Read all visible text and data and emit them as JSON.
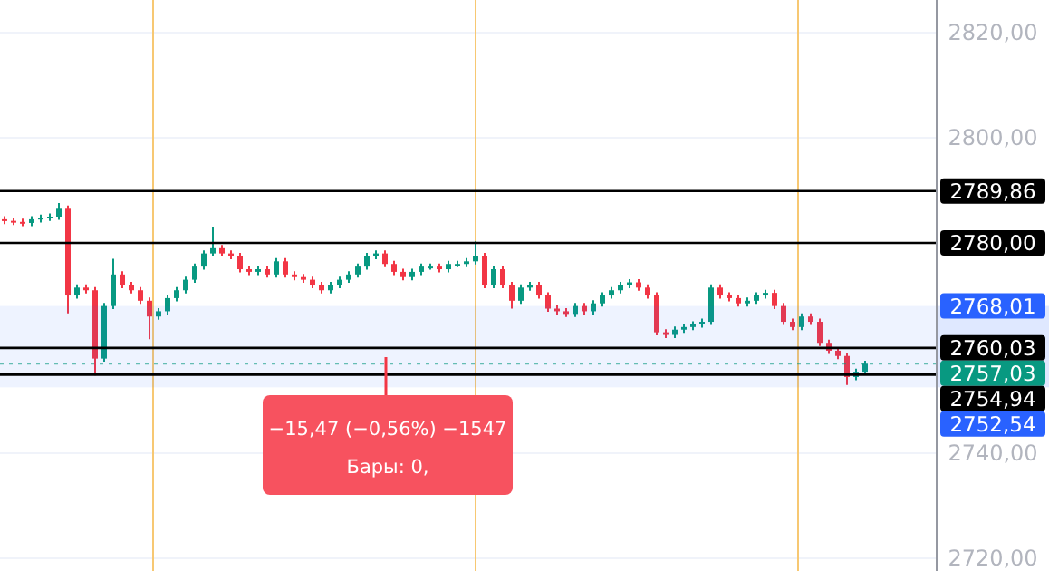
{
  "chart_data": {
    "type": "candlestick",
    "categories": [
      null,
      null,
      null,
      null,
      null,
      null,
      null,
      null,
      null,
      null,
      null,
      null,
      null,
      null,
      null,
      null,
      null,
      null,
      null,
      null,
      null,
      null,
      null,
      null,
      null,
      null,
      null,
      null,
      null,
      null,
      null,
      null,
      null,
      null,
      null,
      null,
      null,
      null,
      null,
      null,
      null,
      null,
      null,
      null,
      null,
      null,
      null,
      null,
      null,
      null,
      null,
      null,
      null,
      null,
      null,
      null,
      null,
      null,
      null,
      null,
      null,
      null,
      null,
      null,
      null,
      null,
      null,
      null,
      null,
      null,
      null,
      null,
      null,
      null,
      null,
      null,
      null,
      null,
      null,
      null,
      null,
      null,
      null,
      null,
      null,
      null,
      null,
      null,
      null,
      null,
      null,
      null,
      null,
      null,
      null,
      null
    ],
    "ohlc": [
      [
        2784.5,
        2785.1,
        2783.6,
        2784.2
      ],
      [
        2784.2,
        2784.8,
        2783.4,
        2784.0
      ],
      [
        2784.0,
        2784.6,
        2783.2,
        2783.8
      ],
      [
        2783.8,
        2785.1,
        2783.2,
        2784.5
      ],
      [
        2784.5,
        2785.4,
        2783.9,
        2784.8
      ],
      [
        2784.8,
        2785.6,
        2784.2,
        2785.0
      ],
      [
        2785.0,
        2787.6,
        2784.4,
        2786.5
      ],
      [
        2786.5,
        2787.1,
        2766.6,
        2770.0
      ],
      [
        2770.0,
        2772.1,
        2769.4,
        2771.5
      ],
      [
        2771.5,
        2772.1,
        2770.4,
        2771.0
      ],
      [
        2771.0,
        2771.6,
        2754.8,
        2758.0
      ],
      [
        2758.0,
        2768.6,
        2757.4,
        2768.0
      ],
      [
        2768.0,
        2777.0,
        2767.4,
        2774.0
      ],
      [
        2774.0,
        2774.6,
        2771.4,
        2772.0
      ],
      [
        2772.0,
        2772.6,
        2770.4,
        2771.0
      ],
      [
        2771.0,
        2771.6,
        2768.4,
        2769.0
      ],
      [
        2769.0,
        2769.6,
        2761.7,
        2766.0
      ],
      [
        2766.0,
        2767.6,
        2765.4,
        2767.0
      ],
      [
        2767.0,
        2770.1,
        2766.4,
        2769.5
      ],
      [
        2769.5,
        2771.6,
        2768.9,
        2771.0
      ],
      [
        2771.0,
        2773.6,
        2770.4,
        2773.0
      ],
      [
        2773.0,
        2776.1,
        2772.4,
        2775.5
      ],
      [
        2775.5,
        2778.6,
        2774.9,
        2778.0
      ],
      [
        2778.0,
        2783.0,
        2777.4,
        2779.0
      ],
      [
        2779.0,
        2779.6,
        2777.4,
        2778.0
      ],
      [
        2778.0,
        2778.6,
        2776.9,
        2777.5
      ],
      [
        2777.5,
        2778.1,
        2774.4,
        2775.0
      ],
      [
        2775.0,
        2775.6,
        2773.9,
        2774.5
      ],
      [
        2774.5,
        2775.6,
        2773.9,
        2775.0
      ],
      [
        2775.0,
        2775.6,
        2773.4,
        2774.0
      ],
      [
        2774.0,
        2777.1,
        2773.4,
        2776.5
      ],
      [
        2776.5,
        2777.1,
        2773.4,
        2774.0
      ],
      [
        2774.0,
        2774.6,
        2772.9,
        2773.5
      ],
      [
        2773.5,
        2774.1,
        2772.4,
        2773.0
      ],
      [
        2773.0,
        2773.6,
        2771.4,
        2772.0
      ],
      [
        2772.0,
        2772.6,
        2770.4,
        2771.0
      ],
      [
        2771.0,
        2772.6,
        2770.4,
        2772.0
      ],
      [
        2772.0,
        2773.6,
        2771.4,
        2773.0
      ],
      [
        2773.0,
        2774.6,
        2772.4,
        2774.0
      ],
      [
        2774.0,
        2776.1,
        2773.4,
        2775.5
      ],
      [
        2775.5,
        2778.1,
        2774.9,
        2777.5
      ],
      [
        2777.5,
        2778.6,
        2776.9,
        2778.0
      ],
      [
        2778.0,
        2778.6,
        2775.4,
        2776.0
      ],
      [
        2776.0,
        2776.6,
        2773.9,
        2774.5
      ],
      [
        2774.5,
        2775.1,
        2772.9,
        2773.5
      ],
      [
        2773.5,
        2775.1,
        2772.9,
        2774.5
      ],
      [
        2774.5,
        2776.1,
        2773.9,
        2775.5
      ],
      [
        2775.5,
        2776.1,
        2774.9,
        2775.5
      ],
      [
        2775.5,
        2776.1,
        2774.4,
        2775.0
      ],
      [
        2775.0,
        2776.6,
        2774.4,
        2776.0
      ],
      [
        2776.0,
        2776.6,
        2775.4,
        2776.0
      ],
      [
        2776.0,
        2777.1,
        2775.4,
        2776.5
      ],
      [
        2776.5,
        2780.3,
        2775.9,
        2777.5
      ],
      [
        2777.5,
        2778.1,
        2771.4,
        2772.0
      ],
      [
        2772.0,
        2775.6,
        2771.4,
        2775.0
      ],
      [
        2775.0,
        2775.6,
        2771.4,
        2772.0
      ],
      [
        2772.0,
        2772.6,
        2767.5,
        2769.0
      ],
      [
        2769.0,
        2772.1,
        2768.4,
        2771.5
      ],
      [
        2771.5,
        2772.6,
        2770.9,
        2772.0
      ],
      [
        2772.0,
        2772.6,
        2769.4,
        2770.0
      ],
      [
        2770.0,
        2770.6,
        2766.9,
        2767.5
      ],
      [
        2767.5,
        2768.1,
        2766.4,
        2767.0
      ],
      [
        2767.0,
        2767.6,
        2765.9,
        2766.5
      ],
      [
        2766.5,
        2768.6,
        2765.9,
        2768.0
      ],
      [
        2768.0,
        2768.6,
        2766.4,
        2767.0
      ],
      [
        2767.0,
        2769.1,
        2766.4,
        2768.5
      ],
      [
        2768.5,
        2770.6,
        2767.9,
        2770.0
      ],
      [
        2770.0,
        2771.6,
        2769.4,
        2771.0
      ],
      [
        2771.0,
        2772.6,
        2770.4,
        2772.0
      ],
      [
        2772.0,
        2773.1,
        2771.4,
        2772.5
      ],
      [
        2772.5,
        2773.1,
        2770.9,
        2771.5
      ],
      [
        2771.5,
        2772.1,
        2769.4,
        2770.0
      ],
      [
        2770.0,
        2770.6,
        2762.4,
        2763.0
      ],
      [
        2763.0,
        2763.6,
        2761.9,
        2762.5
      ],
      [
        2762.5,
        2764.1,
        2761.9,
        2763.5
      ],
      [
        2763.5,
        2764.6,
        2762.9,
        2764.0
      ],
      [
        2764.0,
        2765.1,
        2763.4,
        2764.5
      ],
      [
        2764.5,
        2765.6,
        2763.9,
        2765.0
      ],
      [
        2765.0,
        2772.1,
        2764.4,
        2771.5
      ],
      [
        2771.5,
        2772.1,
        2769.4,
        2770.0
      ],
      [
        2770.0,
        2770.6,
        2768.9,
        2769.5
      ],
      [
        2769.5,
        2770.1,
        2767.9,
        2768.5
      ],
      [
        2768.5,
        2769.6,
        2767.9,
        2769.0
      ],
      [
        2769.0,
        2770.6,
        2768.4,
        2770.0
      ],
      [
        2770.0,
        2771.1,
        2769.4,
        2770.5
      ],
      [
        2770.5,
        2771.1,
        2767.4,
        2768.0
      ],
      [
        2768.0,
        2768.6,
        2764.4,
        2765.0
      ],
      [
        2765.0,
        2765.6,
        2763.4,
        2764.0
      ],
      [
        2764.0,
        2766.6,
        2763.4,
        2766.0
      ],
      [
        2766.0,
        2766.6,
        2764.4,
        2765.0
      ],
      [
        2765.0,
        2765.6,
        2760.4,
        2761.0
      ],
      [
        2761.0,
        2761.6,
        2758.9,
        2759.5
      ],
      [
        2759.5,
        2760.1,
        2757.9,
        2758.5
      ],
      [
        2758.5,
        2759.1,
        2753.0,
        2754.5
      ],
      [
        2754.5,
        2756.1,
        2753.9,
        2755.5
      ],
      [
        2755.5,
        2757.6,
        2754.9,
        2757.03
      ]
    ],
    "colors": [
      "#f23645",
      "#f23645",
      "#f23645",
      "#089981",
      "#089981",
      "#089981",
      "#089981",
      "#f23645",
      "#089981",
      "#f23645",
      "#f23645",
      "#089981",
      "#089981",
      "#f23645",
      "#f23645",
      "#f23645",
      "#f23645",
      "#089981",
      "#089981",
      "#089981",
      "#089981",
      "#089981",
      "#089981",
      "#089981",
      "#f23645",
      "#f23645",
      "#f23645",
      "#f23645",
      "#089981",
      "#f23645",
      "#089981",
      "#f23645",
      "#f23645",
      "#f23645",
      "#f23645",
      "#f23645",
      "#089981",
      "#089981",
      "#089981",
      "#089981",
      "#089981",
      "#089981",
      "#f23645",
      "#f23645",
      "#f23645",
      "#089981",
      "#089981",
      "#089981",
      "#f23645",
      "#089981",
      "#089981",
      "#089981",
      "#089981",
      "#f23645",
      "#089981",
      "#f23645",
      "#f23645",
      "#089981",
      "#089981",
      "#f23645",
      "#f23645",
      "#f23645",
      "#f23645",
      "#089981",
      "#f23645",
      "#089981",
      "#089981",
      "#089981",
      "#089981",
      "#089981",
      "#f23645",
      "#f23645",
      "#f23645",
      "#f23645",
      "#089981",
      "#089981",
      "#089981",
      "#089981",
      "#089981",
      "#f23645",
      "#f23645",
      "#f23645",
      "#089981",
      "#089981",
      "#089981",
      "#f23645",
      "#f23645",
      "#f23645",
      "#089981",
      "#f23645",
      "#f23645",
      "#f23645",
      "#f23645",
      "#f23645",
      "#089981",
      "#089981"
    ],
    "ylim": [
      2717.6,
      2826.2
    ],
    "yticks": [
      {
        "value": 2720,
        "label": "2720,00"
      },
      {
        "value": 2740,
        "label": "2740,00"
      },
      {
        "value": 2800,
        "label": "2800,00"
      },
      {
        "value": 2820,
        "label": "2820,00"
      }
    ],
    "grid": "y",
    "tick_labels": "y",
    "ref_lines": [
      {
        "axis": "y",
        "value": 2789.86,
        "label": "2789,86",
        "color": "#000000",
        "line_style": "solid"
      },
      {
        "axis": "y",
        "value": 2780.0,
        "label": "2780,00",
        "color": "#000000",
        "line_style": "solid"
      },
      {
        "axis": "y",
        "value": 2760.03,
        "label": "2760,03",
        "color": "#000000",
        "line_style": "solid"
      },
      {
        "axis": "y",
        "value": 2754.94,
        "label": "2754,94",
        "color": "#000000",
        "line_style": "solid"
      },
      {
        "axis": "y",
        "value": 2757.03,
        "label": "2757,03",
        "color": "#089981",
        "line_style": "dotted"
      }
    ],
    "bands": [
      {
        "axis": "y",
        "from": 2752.54,
        "to": 2768.01,
        "color": "#2962ff"
      }
    ],
    "annotations": [
      "−15,47 (−0,56%) −1547",
      "Бары: 0,",
      "2768,01",
      "2752,54"
    ]
  }
}
